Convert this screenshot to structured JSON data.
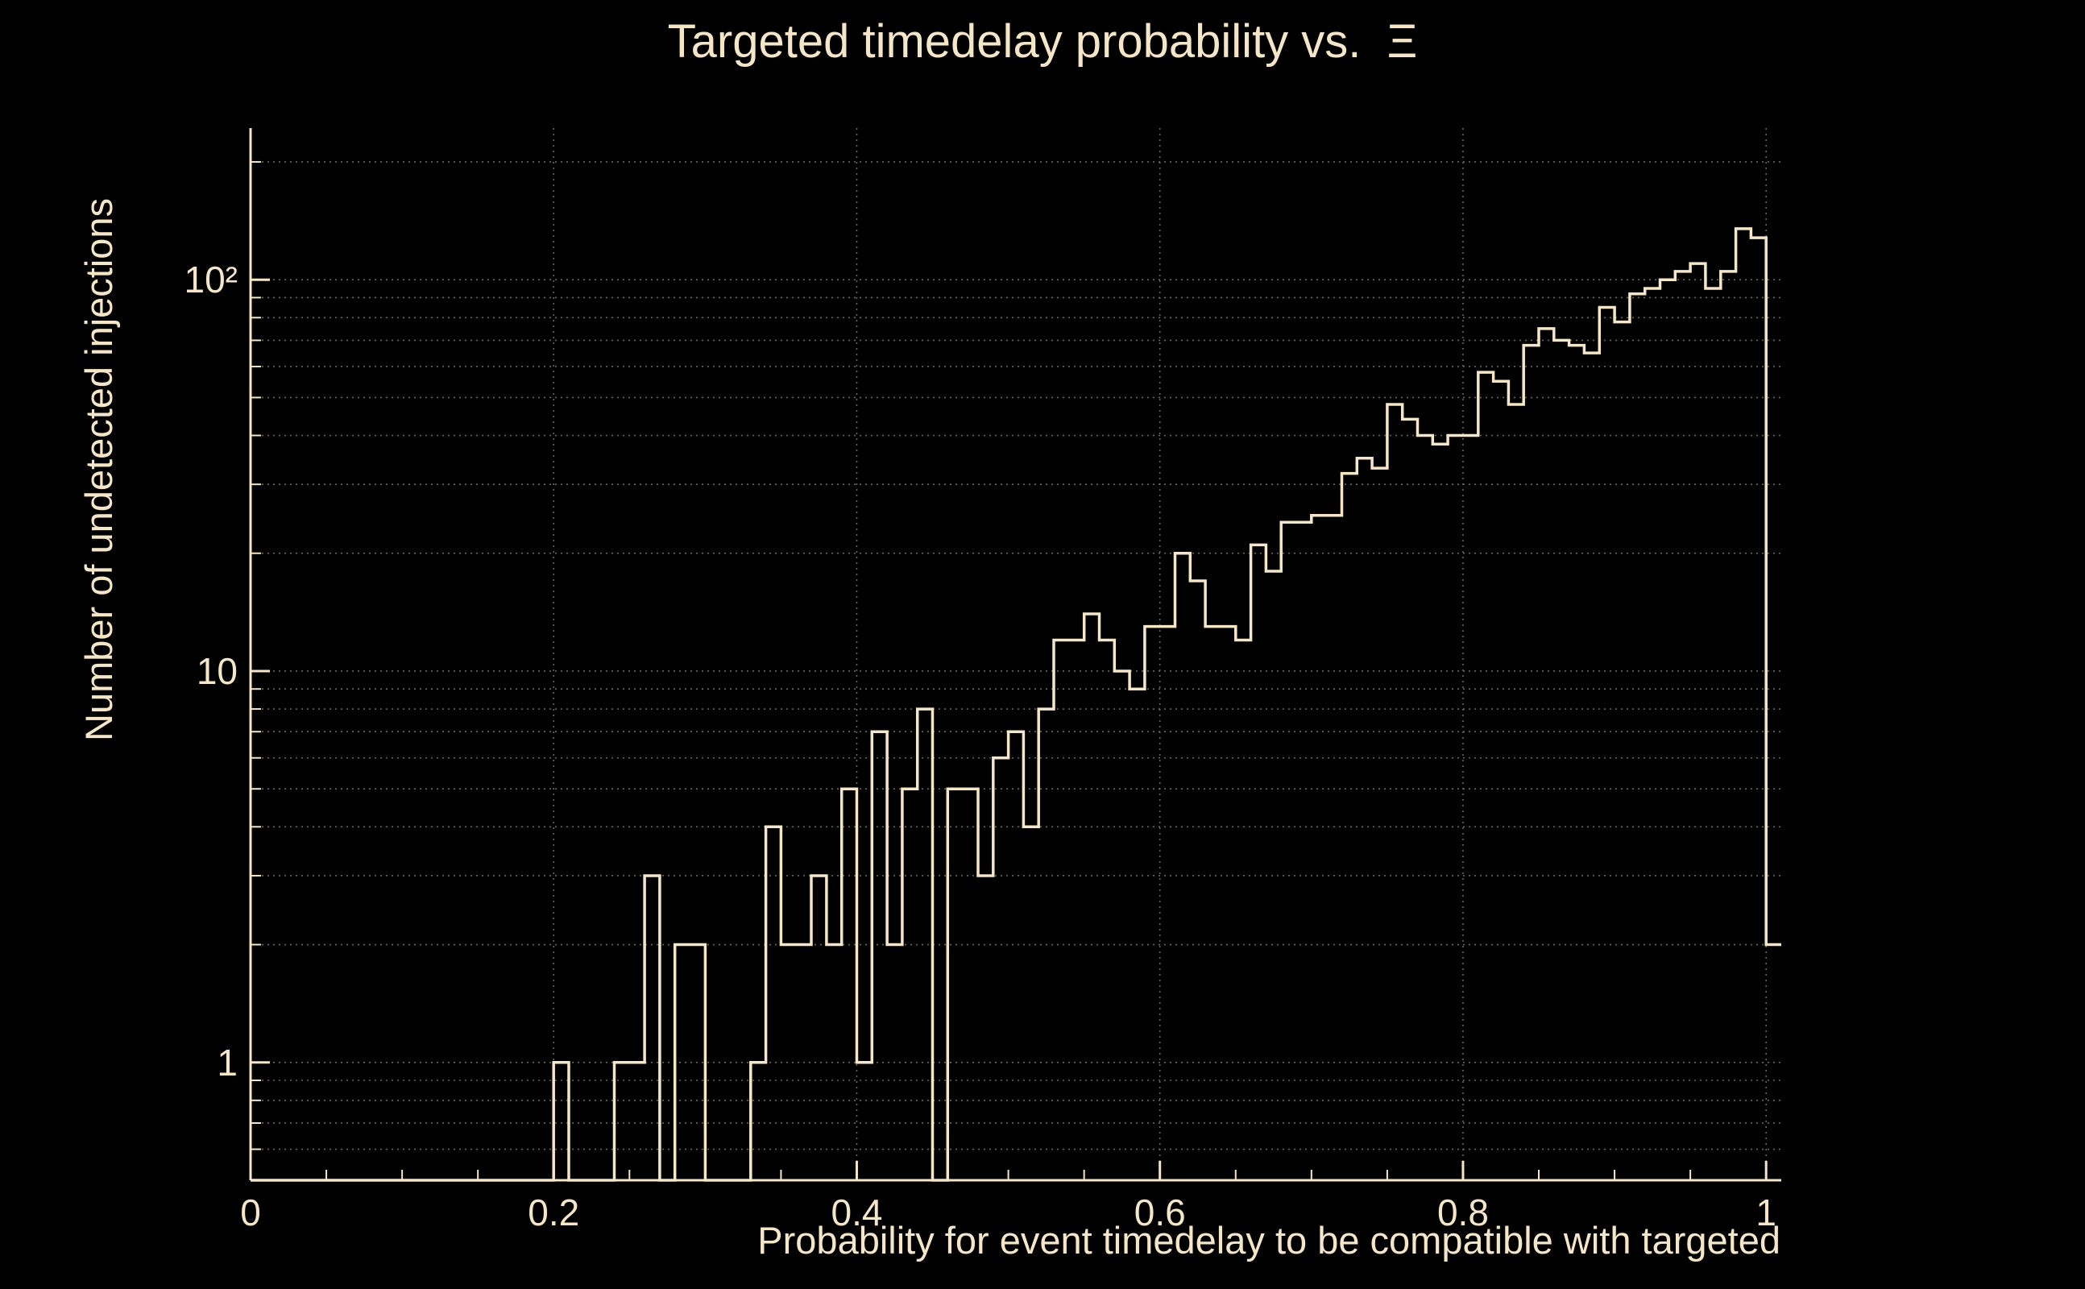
{
  "chart_data": {
    "type": "bar",
    "subtype": "step-histogram",
    "title": "Targeted timedelay probability vs.  Ξ",
    "xlabel": "Probability for event timedelay to be compatible with targeted",
    "ylabel": "Number of undetected injections",
    "x_scale": "linear",
    "y_scale": "log",
    "xlim": [
      0,
      1.01
    ],
    "ylim": [
      0.5,
      244
    ],
    "grid": "dotted horizontal at log minor/major positions, dotted vertical at x major ticks",
    "legend": "none",
    "bin_start": 0.0,
    "bin_width": 0.01,
    "bin_values": [
      0,
      0,
      0,
      0,
      0,
      0,
      0,
      0,
      0,
      0,
      0,
      0,
      0,
      0,
      0,
      0,
      0,
      0,
      0,
      0,
      1,
      0,
      0,
      0,
      1,
      1,
      3,
      0,
      2,
      2,
      0,
      0,
      0,
      1,
      4,
      2,
      2,
      3,
      2,
      5,
      1,
      7,
      2,
      5,
      8,
      0,
      5,
      5,
      3,
      6,
      7,
      4,
      8,
      12,
      12,
      14,
      12,
      10,
      9,
      13,
      13,
      20,
      17,
      13,
      13,
      12,
      21,
      18,
      24,
      24,
      25,
      25,
      32,
      35,
      33,
      48,
      44,
      40,
      38,
      40,
      40,
      58,
      55,
      48,
      68,
      75,
      70,
      68,
      65,
      85,
      78,
      92,
      95,
      100,
      105,
      110,
      95,
      105,
      135,
      128,
      2
    ],
    "x_ticks": [
      0,
      0.2,
      0.4,
      0.6,
      0.8,
      1
    ],
    "x_tick_labels": [
      "0",
      "0.2",
      "0.4",
      "0.6",
      "0.8",
      "1"
    ],
    "x_minor_tick_step": 0.05,
    "y_ticks": [
      1,
      10,
      100
    ],
    "y_tick_labels": [
      "1",
      "10",
      "10²"
    ],
    "colors": {
      "background": "#000000",
      "line": "#f5e6c8",
      "text": "#f5e6c8",
      "grid": "#6b675c"
    }
  }
}
